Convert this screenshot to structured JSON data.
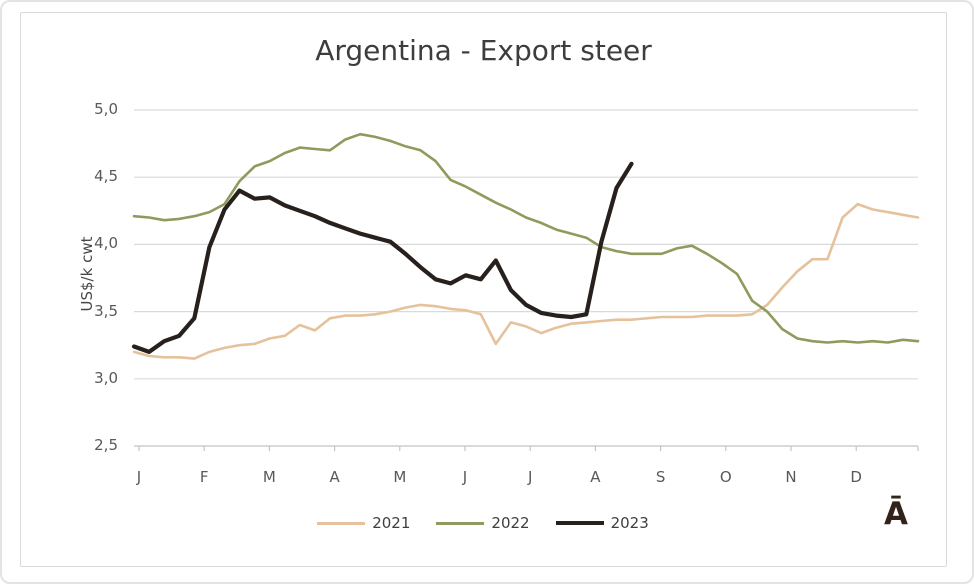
{
  "chart_data": {
    "type": "line",
    "title": "Argentina - Export steer",
    "ylabel": "US$/k cwt",
    "ylim": [
      2.5,
      5.0
    ],
    "yticks": [
      5.0,
      4.5,
      4.0,
      3.5,
      3.0,
      2.5
    ],
    "ytick_labels": [
      "5,0",
      "4,5",
      "4,0",
      "3,5",
      "3,0",
      "2,5"
    ],
    "xtick_labels": [
      "J",
      "F",
      "M",
      "A",
      "M",
      "J",
      "J",
      "A",
      "S",
      "O",
      "N",
      "D"
    ],
    "x_unit": "weeks (Jan-Dec)",
    "grid": "horizontal",
    "legend_position": "bottom",
    "series": [
      {
        "name": "2021",
        "color": "#e5c29b",
        "line_width": 2.6,
        "values": [
          3.2,
          3.17,
          3.16,
          3.16,
          3.15,
          3.2,
          3.23,
          3.25,
          3.26,
          3.3,
          3.32,
          3.4,
          3.36,
          3.45,
          3.47,
          3.47,
          3.48,
          3.5,
          3.53,
          3.55,
          3.54,
          3.52,
          3.51,
          3.48,
          3.26,
          3.42,
          3.39,
          3.34,
          3.38,
          3.41,
          3.42,
          3.43,
          3.44,
          3.44,
          3.45,
          3.46,
          3.46,
          3.46,
          3.47,
          3.47,
          3.47,
          3.48,
          3.55,
          3.68,
          3.8,
          3.89,
          3.89,
          4.2,
          4.3,
          4.26,
          4.24,
          4.22,
          4.2
        ]
      },
      {
        "name": "2022",
        "color": "#909a5d",
        "line_width": 2.6,
        "values": [
          4.21,
          4.2,
          4.18,
          4.19,
          4.21,
          4.24,
          4.3,
          4.47,
          4.58,
          4.62,
          4.68,
          4.72,
          4.71,
          4.7,
          4.78,
          4.82,
          4.8,
          4.77,
          4.73,
          4.7,
          4.62,
          4.48,
          4.43,
          4.37,
          4.31,
          4.26,
          4.2,
          4.16,
          4.11,
          4.08,
          4.05,
          3.98,
          3.95,
          3.93,
          3.93,
          3.93,
          3.97,
          3.99,
          3.93,
          3.86,
          3.78,
          3.58,
          3.5,
          3.37,
          3.3,
          3.28,
          3.27,
          3.28,
          3.27,
          3.28,
          3.27,
          3.29,
          3.28
        ]
      },
      {
        "name": "2023",
        "color": "#27201c",
        "line_width": 4.2,
        "values": [
          3.24,
          3.2,
          3.28,
          3.32,
          3.45,
          3.98,
          4.26,
          4.4,
          4.34,
          4.35,
          4.29,
          4.25,
          4.21,
          4.16,
          4.12,
          4.08,
          4.05,
          4.02,
          3.93,
          3.83,
          3.74,
          3.71,
          3.77,
          3.74,
          3.88,
          3.66,
          3.55,
          3.49,
          3.47,
          3.46,
          3.48,
          4.02,
          4.42,
          4.6
        ]
      }
    ]
  },
  "annotations": {
    "corner_glyph": "Ā"
  },
  "colors": {
    "gridline": "#dadada",
    "axis_line": "#c4c4c4",
    "frame_border": "#d9d9d9",
    "title_text": "#3d3d3d",
    "tick_text": "#595959"
  }
}
